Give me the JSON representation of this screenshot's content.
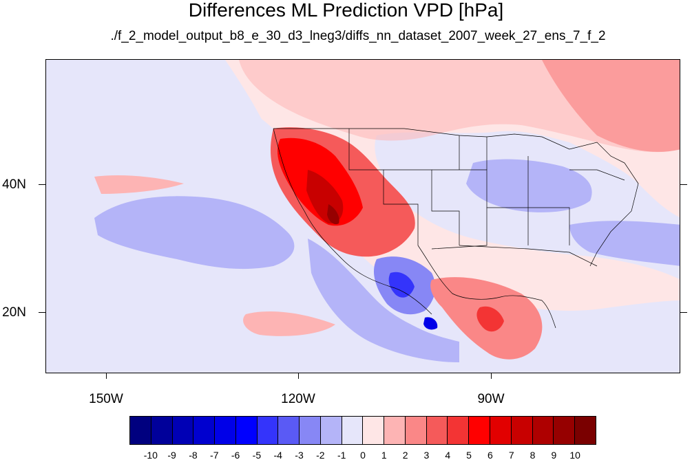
{
  "title": "Differences ML Prediction VPD [hPa]",
  "subtitle": "./f_2_model_output_b8_e_30_d3_lneg3/diffs_nn_dataset_2007_week_27_ens_7_f_2",
  "map": {
    "projection": "cylindrical",
    "lon_range": [
      -161,
      -62
    ],
    "lat_range": [
      11,
      60
    ],
    "lon_labels": [
      "150W",
      "120W",
      "90W"
    ],
    "lat_labels": [
      "40N",
      "20N"
    ],
    "features": [
      "coastlines",
      "country-borders",
      "us-state-borders"
    ]
  },
  "colorbar": {
    "labels": [
      "-10",
      "-9",
      "-8",
      "-7",
      "-6",
      "-5",
      "-4",
      "-3",
      "-2",
      "-1",
      "0",
      "1",
      "2",
      "3",
      "4",
      "5",
      "6",
      "7",
      "8",
      "9",
      "10"
    ],
    "colors": [
      "#00007f",
      "#00009a",
      "#0000b5",
      "#0000cf",
      "#0000e8",
      "#0000ff",
      "#3434fb",
      "#5a5af5",
      "#8787f5",
      "#b4b4f8",
      "#e6e6fa",
      "#fee6e6",
      "#fdb4b4",
      "#fa8787",
      "#f55a5a",
      "#f33434",
      "#ff0000",
      "#e20000",
      "#c80000",
      "#ae0000",
      "#960000",
      "#7a0000"
    ]
  }
}
